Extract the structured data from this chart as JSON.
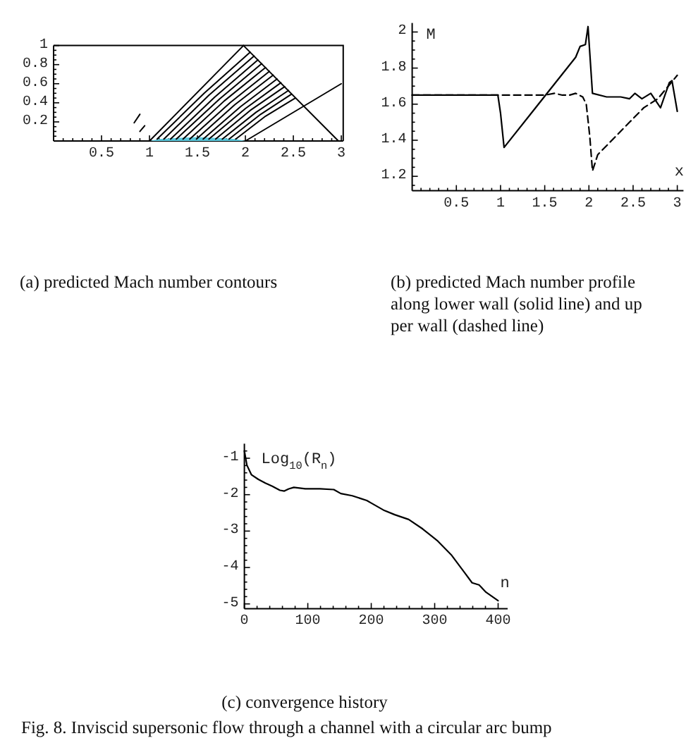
{
  "chart_data": [
    {
      "type": "line",
      "xlim": [
        0,
        3.02
      ],
      "ylim": [
        0,
        1
      ],
      "xticks": [
        {
          "value": 0.1,
          "label": null
        },
        {
          "value": 0.2,
          "label": null
        },
        {
          "value": 0.3,
          "label": null
        },
        {
          "value": 0.4,
          "label": null
        },
        0.5,
        {
          "value": 0.6,
          "label": null
        },
        {
          "value": 0.7,
          "label": null
        },
        {
          "value": 0.8,
          "label": null
        },
        {
          "value": 0.9,
          "label": null
        },
        1,
        {
          "value": 1.1,
          "label": null
        },
        {
          "value": 1.2,
          "label": null
        },
        {
          "value": 1.3,
          "label": null
        },
        {
          "value": 1.4,
          "label": null
        },
        1.5,
        {
          "value": 1.6,
          "label": null
        },
        {
          "value": 1.7,
          "label": null
        },
        {
          "value": 1.8,
          "label": null
        },
        {
          "value": 1.9,
          "label": null
        },
        2,
        {
          "value": 2.1,
          "label": null
        },
        {
          "value": 2.2,
          "label": null
        },
        {
          "value": 2.3,
          "label": null
        },
        {
          "value": 2.4,
          "label": null
        },
        2.5,
        {
          "value": 2.6,
          "label": null
        },
        {
          "value": 2.7,
          "label": null
        },
        {
          "value": 2.8,
          "label": null
        },
        {
          "value": 2.9,
          "label": null
        },
        3
      ],
      "yticks": [
        {
          "value": 0.05,
          "label": null
        },
        {
          "value": 0.1,
          "label": null
        },
        {
          "value": 0.15,
          "label": null
        },
        0.2,
        {
          "value": 0.25,
          "label": null
        },
        {
          "value": 0.3,
          "label": null
        },
        {
          "value": 0.35,
          "label": null
        },
        0.4,
        {
          "value": 0.45,
          "label": null
        },
        {
          "value": 0.5,
          "label": null
        },
        {
          "value": 0.55,
          "label": null
        },
        0.6,
        {
          "value": 0.65,
          "label": null
        },
        {
          "value": 0.7,
          "label": null
        },
        {
          "value": 0.75,
          "label": null
        },
        0.8,
        {
          "value": 0.85,
          "label": null
        },
        {
          "value": 0.9,
          "label": null
        },
        {
          "value": 0.95,
          "label": null
        },
        1
      ],
      "series": [
        {
          "type": "area",
          "color": "#5cc8dc",
          "x": [
            1,
            1.1,
            1.25,
            1.5,
            1.75,
            1.9,
            2
          ],
          "values": [
            0,
            0.02,
            0.03,
            0.04,
            0.03,
            0.02,
            0
          ]
        },
        {
          "color": "#000000",
          "x": [
            1,
            1.98
          ],
          "values": [
            0,
            1
          ]
        },
        {
          "color": "#000000",
          "x": [
            1.98,
            2.97
          ],
          "values": [
            1,
            0
          ]
        },
        {
          "color": "#000000",
          "x": [
            2,
            3
          ],
          "values": [
            0,
            0.6
          ]
        },
        {
          "color": "#000000",
          "x": [
            1.08,
            1.57,
            2.05
          ],
          "values": [
            0.02,
            0.5,
            0.93
          ]
        },
        {
          "color": "#000000",
          "x": [
            1.15,
            1.62,
            2.09
          ],
          "values": [
            0.02,
            0.48,
            0.89
          ]
        },
        {
          "color": "#000000",
          "x": [
            1.22,
            1.68,
            2.13
          ],
          "values": [
            0.02,
            0.46,
            0.85
          ]
        },
        {
          "color": "#000000",
          "x": [
            1.28,
            1.73,
            2.17
          ],
          "values": [
            0.02,
            0.44,
            0.81
          ]
        },
        {
          "color": "#000000",
          "x": [
            1.35,
            1.78,
            2.21
          ],
          "values": [
            0.02,
            0.42,
            0.77
          ]
        },
        {
          "color": "#000000",
          "x": [
            1.42,
            1.84,
            2.25
          ],
          "values": [
            0.02,
            0.4,
            0.73
          ]
        },
        {
          "color": "#000000",
          "x": [
            1.49,
            1.89,
            2.29
          ],
          "values": [
            0.02,
            0.38,
            0.69
          ]
        },
        {
          "color": "#000000",
          "x": [
            1.56,
            1.95,
            2.33
          ],
          "values": [
            0.02,
            0.36,
            0.65
          ]
        },
        {
          "color": "#000000",
          "x": [
            1.62,
            2,
            2.37
          ],
          "values": [
            0.02,
            0.34,
            0.61
          ]
        },
        {
          "color": "#000000",
          "x": [
            1.69,
            2.05,
            2.41
          ],
          "values": [
            0.02,
            0.32,
            0.57
          ]
        },
        {
          "color": "#000000",
          "x": [
            1.76,
            2.11,
            2.45
          ],
          "values": [
            0.02,
            0.3,
            0.53
          ]
        },
        {
          "color": "#000000",
          "x": [
            1.83,
            2.16,
            2.48
          ],
          "values": [
            0.02,
            0.28,
            0.49
          ]
        },
        {
          "color": "#000000",
          "x": [
            1.9,
            2.21,
            2.52
          ],
          "values": [
            0.02,
            0.26,
            0.45
          ]
        },
        {
          "color": "#000000",
          "x": [
            0.84,
            0.9
          ],
          "values": [
            0.19,
            0.28
          ]
        },
        {
          "color": "#000000",
          "x": [
            0.9,
            0.95
          ],
          "values": [
            0.1,
            0.16
          ]
        }
      ],
      "annotations": [
        "(a) predicted Mach number contours"
      ]
    },
    {
      "type": "line",
      "xlabel": "x",
      "ylabel": "M",
      "xlim": [
        0,
        3.07
      ],
      "ylim": [
        1.12,
        2.05
      ],
      "xticks": [
        {
          "value": 0.1,
          "label": null
        },
        {
          "value": 0.2,
          "label": null
        },
        {
          "value": 0.3,
          "label": null
        },
        {
          "value": 0.4,
          "label": null
        },
        0.5,
        {
          "value": 0.6,
          "label": null
        },
        {
          "value": 0.7,
          "label": null
        },
        {
          "value": 0.8,
          "label": null
        },
        {
          "value": 0.9,
          "label": null
        },
        1,
        {
          "value": 1.1,
          "label": null
        },
        {
          "value": 1.2,
          "label": null
        },
        {
          "value": 1.3,
          "label": null
        },
        {
          "value": 1.4,
          "label": null
        },
        1.5,
        {
          "value": 1.6,
          "label": null
        },
        {
          "value": 1.7,
          "label": null
        },
        {
          "value": 1.8,
          "label": null
        },
        {
          "value": 1.9,
          "label": null
        },
        2,
        {
          "value": 2.1,
          "label": null
        },
        {
          "value": 2.2,
          "label": null
        },
        {
          "value": 2.3,
          "label": null
        },
        {
          "value": 2.4,
          "label": null
        },
        2.5,
        {
          "value": 2.6,
          "label": null
        },
        {
          "value": 2.7,
          "label": null
        },
        {
          "value": 2.8,
          "label": null
        },
        {
          "value": 2.9,
          "label": null
        },
        3
      ],
      "yticks": [
        {
          "value": 1.15,
          "label": null
        },
        1.2,
        {
          "value": 1.25,
          "label": null
        },
        {
          "value": 1.3,
          "label": null
        },
        {
          "value": 1.35,
          "label": null
        },
        1.4,
        {
          "value": 1.45,
          "label": null
        },
        {
          "value": 1.5,
          "label": null
        },
        {
          "value": 1.55,
          "label": null
        },
        1.6,
        {
          "value": 1.65,
          "label": null
        },
        {
          "value": 1.7,
          "label": null
        },
        {
          "value": 1.75,
          "label": null
        },
        1.8,
        {
          "value": 1.85,
          "label": null
        },
        {
          "value": 1.9,
          "label": null
        },
        {
          "value": 1.95,
          "label": null
        },
        2
      ],
      "series": [
        {
          "color": "#000000",
          "line_style": "solid",
          "x": [
            0,
            0.97,
            1,
            1.04,
            1.85,
            1.9,
            1.96,
            1.99,
            2.04,
            2.2,
            2.36,
            2.46,
            2.52,
            2.6,
            2.7,
            2.81,
            2.91,
            2.94,
            3
          ],
          "values": [
            1.65,
            1.65,
            1.55,
            1.36,
            1.86,
            1.92,
            1.93,
            2.03,
            1.66,
            1.64,
            1.64,
            1.63,
            1.66,
            1.63,
            1.66,
            1.58,
            1.72,
            1.73,
            1.56
          ]
        },
        {
          "color": "#000000",
          "line_style": "dashed",
          "x": [
            0,
            1.5,
            1.61,
            1.7,
            1.78,
            1.85,
            1.93,
            1.97,
            2.01,
            2.04,
            2.1,
            2.14,
            2.3,
            2.46,
            2.62,
            2.78,
            3
          ],
          "values": [
            1.65,
            1.65,
            1.66,
            1.65,
            1.65,
            1.66,
            1.64,
            1.6,
            1.42,
            1.23,
            1.32,
            1.34,
            1.42,
            1.5,
            1.58,
            1.63,
            1.76
          ]
        }
      ],
      "annotations": [
        "(b) predicted Mach number profile\nalong lower wall (solid line) and up\nper wall (dashed line)"
      ]
    },
    {
      "type": "line",
      "xlabel": "n",
      "ylabel": "Log$_{10}$(R$_{n}$)",
      "xlim": [
        0,
        415
      ],
      "ylim": [
        -5.13,
        -0.6
      ],
      "xticks": [
        0,
        {
          "value": 20,
          "label": null
        },
        {
          "value": 40,
          "label": null
        },
        {
          "value": 60,
          "label": null
        },
        {
          "value": 80,
          "label": null
        },
        100,
        {
          "value": 120,
          "label": null
        },
        {
          "value": 140,
          "label": null
        },
        {
          "value": 160,
          "label": null
        },
        {
          "value": 180,
          "label": null
        },
        200,
        {
          "value": 220,
          "label": null
        },
        {
          "value": 240,
          "label": null
        },
        {
          "value": 260,
          "label": null
        },
        {
          "value": 280,
          "label": null
        },
        300,
        {
          "value": 320,
          "label": null
        },
        {
          "value": 340,
          "label": null
        },
        {
          "value": 360,
          "label": null
        },
        {
          "value": 380,
          "label": null
        },
        400
      ],
      "yticks": [
        {
          "value": -0.8,
          "label": null
        },
        -1,
        {
          "value": -1.2,
          "label": null
        },
        {
          "value": -1.4,
          "label": null
        },
        {
          "value": -1.6,
          "label": null
        },
        {
          "value": -1.8,
          "label": null
        },
        -2,
        {
          "value": -2.2,
          "label": null
        },
        {
          "value": -2.4,
          "label": null
        },
        {
          "value": -2.6,
          "label": null
        },
        {
          "value": -2.8,
          "label": null
        },
        -3,
        {
          "value": -3.2,
          "label": null
        },
        {
          "value": -3.4,
          "label": null
        },
        {
          "value": -3.6,
          "label": null
        },
        {
          "value": -3.8,
          "label": null
        },
        -4,
        {
          "value": -4.2,
          "label": null
        },
        {
          "value": -4.4,
          "label": null
        },
        {
          "value": -4.6,
          "label": null
        },
        {
          "value": -4.8,
          "label": null
        },
        -5
      ],
      "x": [
        0,
        4,
        11,
        22,
        33,
        44,
        56,
        63,
        70,
        78,
        96,
        119,
        141,
        152,
        170,
        193,
        200,
        219,
        237,
        259,
        281,
        304,
        326,
        348,
        359,
        370,
        381,
        400
      ],
      "series": [
        {
          "color": "#000000",
          "values": [
            -0.8,
            -1.19,
            -1.45,
            -1.58,
            -1.68,
            -1.77,
            -1.88,
            -1.9,
            -1.84,
            -1.8,
            -1.84,
            -1.84,
            -1.86,
            -1.97,
            -2.03,
            -2.16,
            -2.23,
            -2.42,
            -2.55,
            -2.68,
            -2.94,
            -3.26,
            -3.65,
            -4.16,
            -4.42,
            -4.48,
            -4.68,
            -4.91
          ]
        }
      ],
      "annotations": [
        "(c) convergence history",
        "Fig. 8. Inviscid supersonic flow through a channel with a circular arc bump"
      ]
    }
  ]
}
